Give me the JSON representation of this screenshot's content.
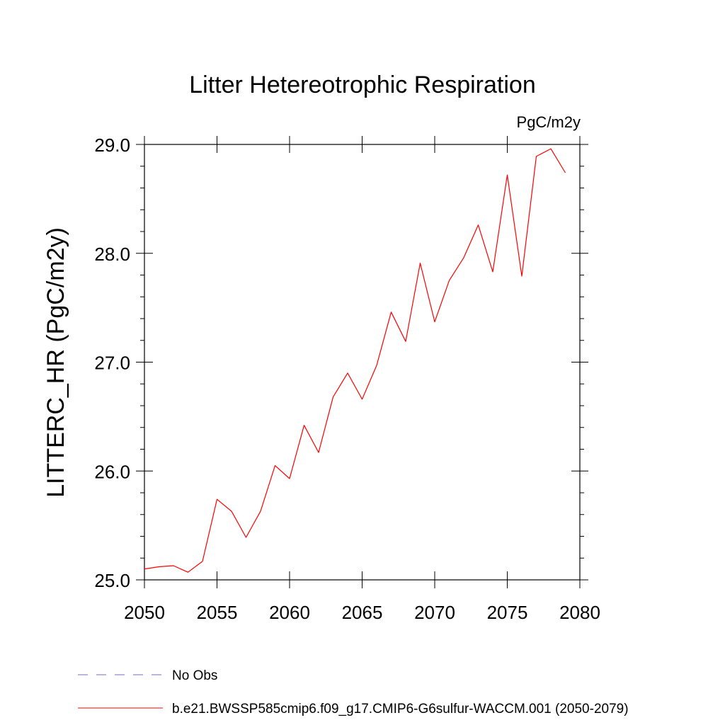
{
  "chart_data": {
    "type": "line",
    "title": "Litter Hetereotrophic Respiration",
    "subtitle": "PgC/m2y",
    "ylabel": "LITTERC_HR  (PgC/m2y)",
    "xlabel": "",
    "xlim": [
      2050,
      2080
    ],
    "ylim": [
      25.0,
      29.0
    ],
    "x_ticks": [
      "2050",
      "2055",
      "2060",
      "2065",
      "2070",
      "2075",
      "2080"
    ],
    "y_ticks": [
      "25.0",
      "26.0",
      "27.0",
      "28.0",
      "29.0"
    ],
    "grid": false,
    "legend_position": "bottom-left",
    "series": [
      {
        "name": "b.e21.BWSSP585cmip6.f09_g17.CMIP6-G6sulfur-WACCM.001 (2050-2079)",
        "color": "#ff0000",
        "x": [
          2050,
          2051,
          2052,
          2053,
          2054,
          2055,
          2056,
          2057,
          2058,
          2059,
          2060,
          2061,
          2062,
          2063,
          2064,
          2065,
          2066,
          2067,
          2068,
          2069,
          2070,
          2071,
          2072,
          2073,
          2074,
          2075,
          2076,
          2077,
          2078,
          2079
        ],
        "y": [
          25.1,
          25.12,
          25.13,
          25.07,
          25.17,
          25.74,
          25.63,
          25.39,
          25.63,
          26.05,
          25.93,
          26.42,
          26.17,
          26.68,
          26.9,
          26.66,
          26.97,
          27.46,
          27.19,
          27.91,
          27.37,
          27.75,
          27.96,
          28.26,
          27.83,
          28.72,
          27.79,
          28.89,
          28.96,
          28.74
        ]
      }
    ],
    "legend": [
      {
        "label": "No Obs",
        "color": "#7b68c8",
        "style": "dashed"
      },
      {
        "label": "b.e21.BWSSP585cmip6.f09_g17.CMIP6-G6sulfur-WACCM.001 (2050-2079)",
        "color": "#ff0000",
        "style": "solid"
      }
    ]
  }
}
